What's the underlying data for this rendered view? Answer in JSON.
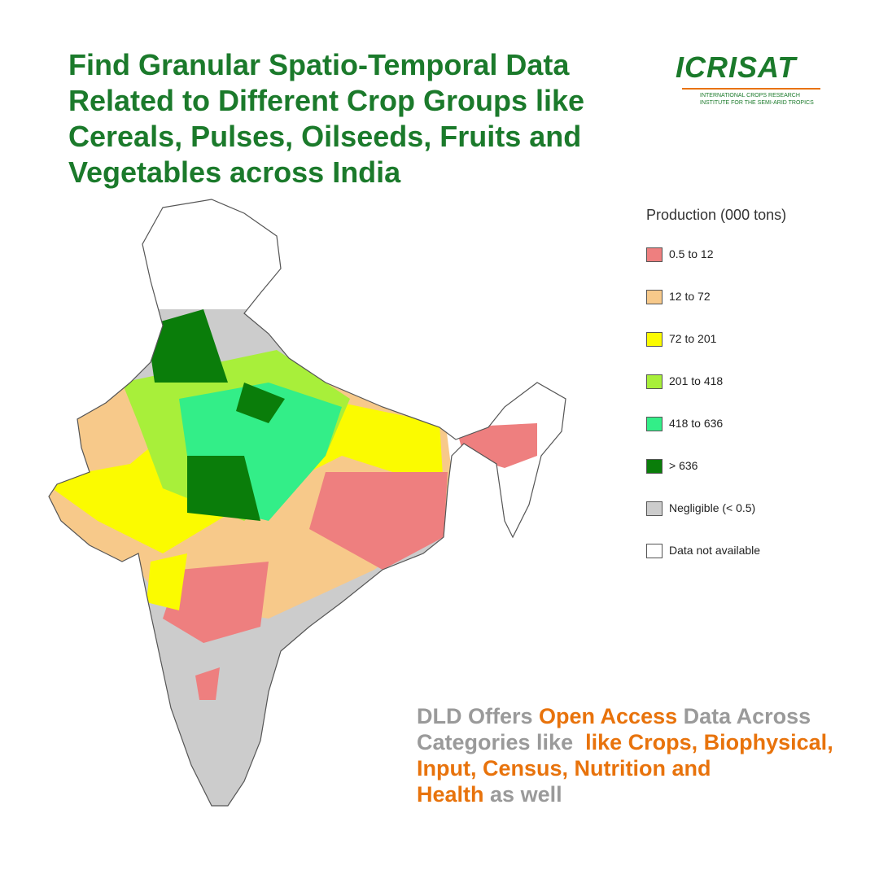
{
  "header": {
    "title_lines": [
      "Find Granular Spatio-Temporal Data",
      "Related to Different Crop Groups like",
      "Cereals, Pulses, Oilseeds, Fruits and",
      "Vegetables across India"
    ]
  },
  "logo": {
    "name": "ICRISAT",
    "subtitle_lines": [
      "INTERNATIONAL CROPS RESEARCH",
      "INSTITUTE FOR THE SEMI-ARID TROPICS"
    ]
  },
  "legend": {
    "title": "Production (000 tons)",
    "items": [
      {
        "label": "0.5 to 12",
        "color": "#ee7f7f"
      },
      {
        "label": "12 to 72",
        "color": "#f7c98a"
      },
      {
        "label": "72 to 201",
        "color": "#fbfb00"
      },
      {
        "label": "201 to 418",
        "color": "#a8ef3a"
      },
      {
        "label": "418 to 636",
        "color": "#33ee88"
      },
      {
        "label": "> 636",
        "color": "#0a7d0a"
      },
      {
        "label": "Negligible (< 0.5)",
        "color": "#cccccc"
      },
      {
        "label": "Data not available",
        "color": "#ffffff"
      }
    ]
  },
  "footer": {
    "lines": [
      [
        {
          "text": "DLD Offers ",
          "color": "#9a9a9a"
        },
        {
          "text": "Open Access",
          "color": "#e8730c"
        },
        {
          "text": " Data Across",
          "color": "#9a9a9a"
        }
      ],
      [
        {
          "text": "Categories like ",
          "color": "#9a9a9a"
        },
        {
          "text": " like Crops, Biophysical,",
          "color": "#e8730c"
        }
      ],
      [
        {
          "text": "Input, Census, Nutrition and",
          "color": "#e8730c"
        }
      ],
      [
        {
          "text": "Health",
          "color": "#e8730c"
        },
        {
          "text": " as well",
          "color": "#9a9a9a"
        }
      ]
    ]
  }
}
